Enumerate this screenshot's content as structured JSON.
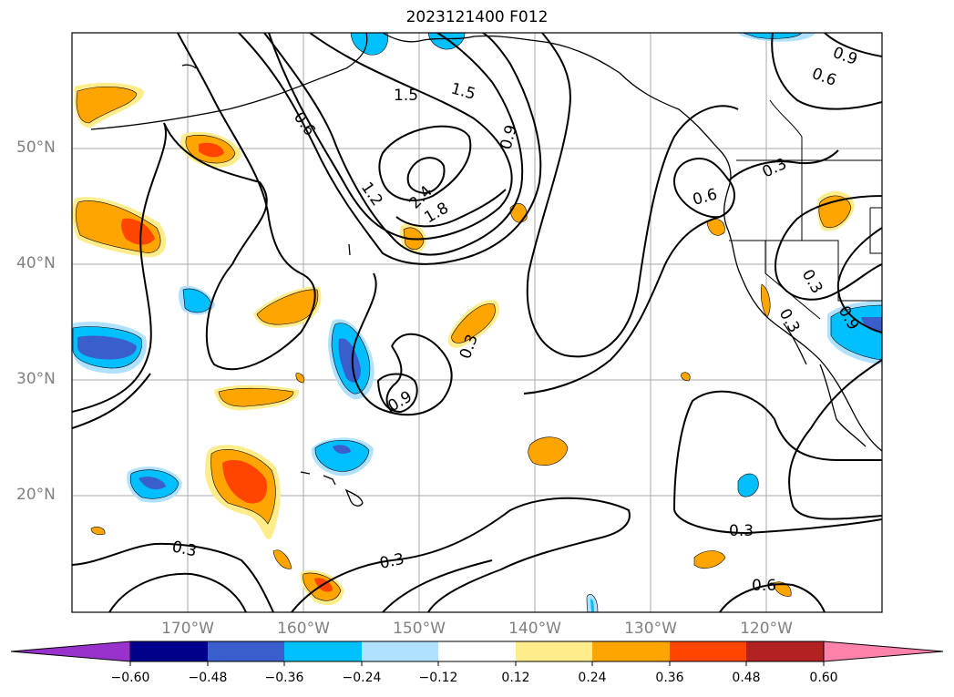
{
  "title": "2023121400 F012",
  "map": {
    "lat_labels": [
      "50°N",
      "40°N",
      "30°N",
      "20°N"
    ],
    "lon_labels": [
      "170°W",
      "160°W",
      "150°W",
      "140°W",
      "130°W",
      "120°W"
    ],
    "contour_labels": [
      "1.5",
      "1.5",
      "0.6",
      "0.9",
      "1.2",
      "2.4",
      "1.8",
      "0.3",
      "0.6",
      "0.3",
      "0.9",
      "0.6",
      "0.3",
      "0.9",
      "0.3",
      "0.3",
      "0.3",
      "0.3",
      "0.9",
      "0.6"
    ],
    "fill_colors": {
      "strong_neg": "#3a5fcd",
      "neg": "#00bfff",
      "weak_neg": "#b0e2ff",
      "weak_pos": "#ffec8b",
      "pos": "#ffa500",
      "strong_pos": "#ff4500"
    }
  },
  "colorbar": {
    "ticks": [
      "−0.60",
      "−0.48",
      "−0.36",
      "−0.24",
      "−0.12",
      "0.12",
      "0.24",
      "0.36",
      "0.48",
      "0.60"
    ],
    "colors": [
      "#9932cc",
      "#00008b",
      "#3a5fcd",
      "#00bfff",
      "#b0e2ff",
      "#ffffff",
      "#ffec8b",
      "#ffa500",
      "#ff4500",
      "#b22222",
      "#ff82ab"
    ]
  }
}
